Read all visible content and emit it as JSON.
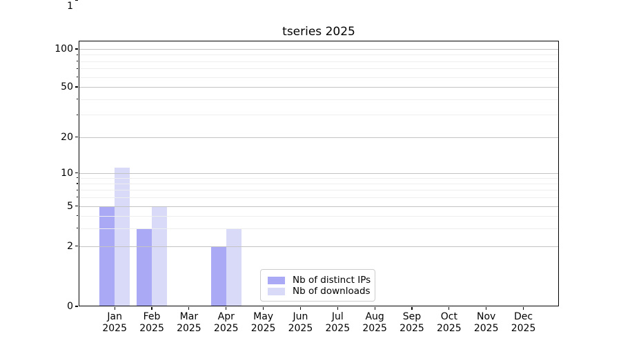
{
  "chart_data": {
    "type": "bar",
    "title": "tseries 2025",
    "categories": [
      "Jan",
      "Feb",
      "Mar",
      "Apr",
      "May",
      "Jun",
      "Jul",
      "Aug",
      "Sep",
      "Oct",
      "Nov",
      "Dec"
    ],
    "x_year_label": "2025",
    "series": [
      {
        "name": "Nb of distinct IPs",
        "color": "#a9a9f5",
        "values": [
          5,
          3,
          0,
          2,
          0,
          0,
          0,
          0,
          0,
          0,
          0,
          0
        ]
      },
      {
        "name": "Nb of downloads",
        "color": "#d9d9f8",
        "values": [
          11,
          5,
          0,
          3,
          0,
          0,
          0,
          0,
          0,
          0,
          0,
          0
        ]
      }
    ],
    "yscale": "log",
    "ylim": [
      0,
      100
    ],
    "ytick_values": [
      0,
      1,
      2,
      5,
      10,
      20,
      50,
      100
    ],
    "ytick_minor_values": [
      3,
      4,
      6,
      7,
      8,
      9,
      30,
      40,
      60,
      70,
      80,
      90
    ],
    "grid": "horizontal, major and minor, drawn over bars",
    "legend": {
      "position": "lower center inside plot"
    }
  }
}
